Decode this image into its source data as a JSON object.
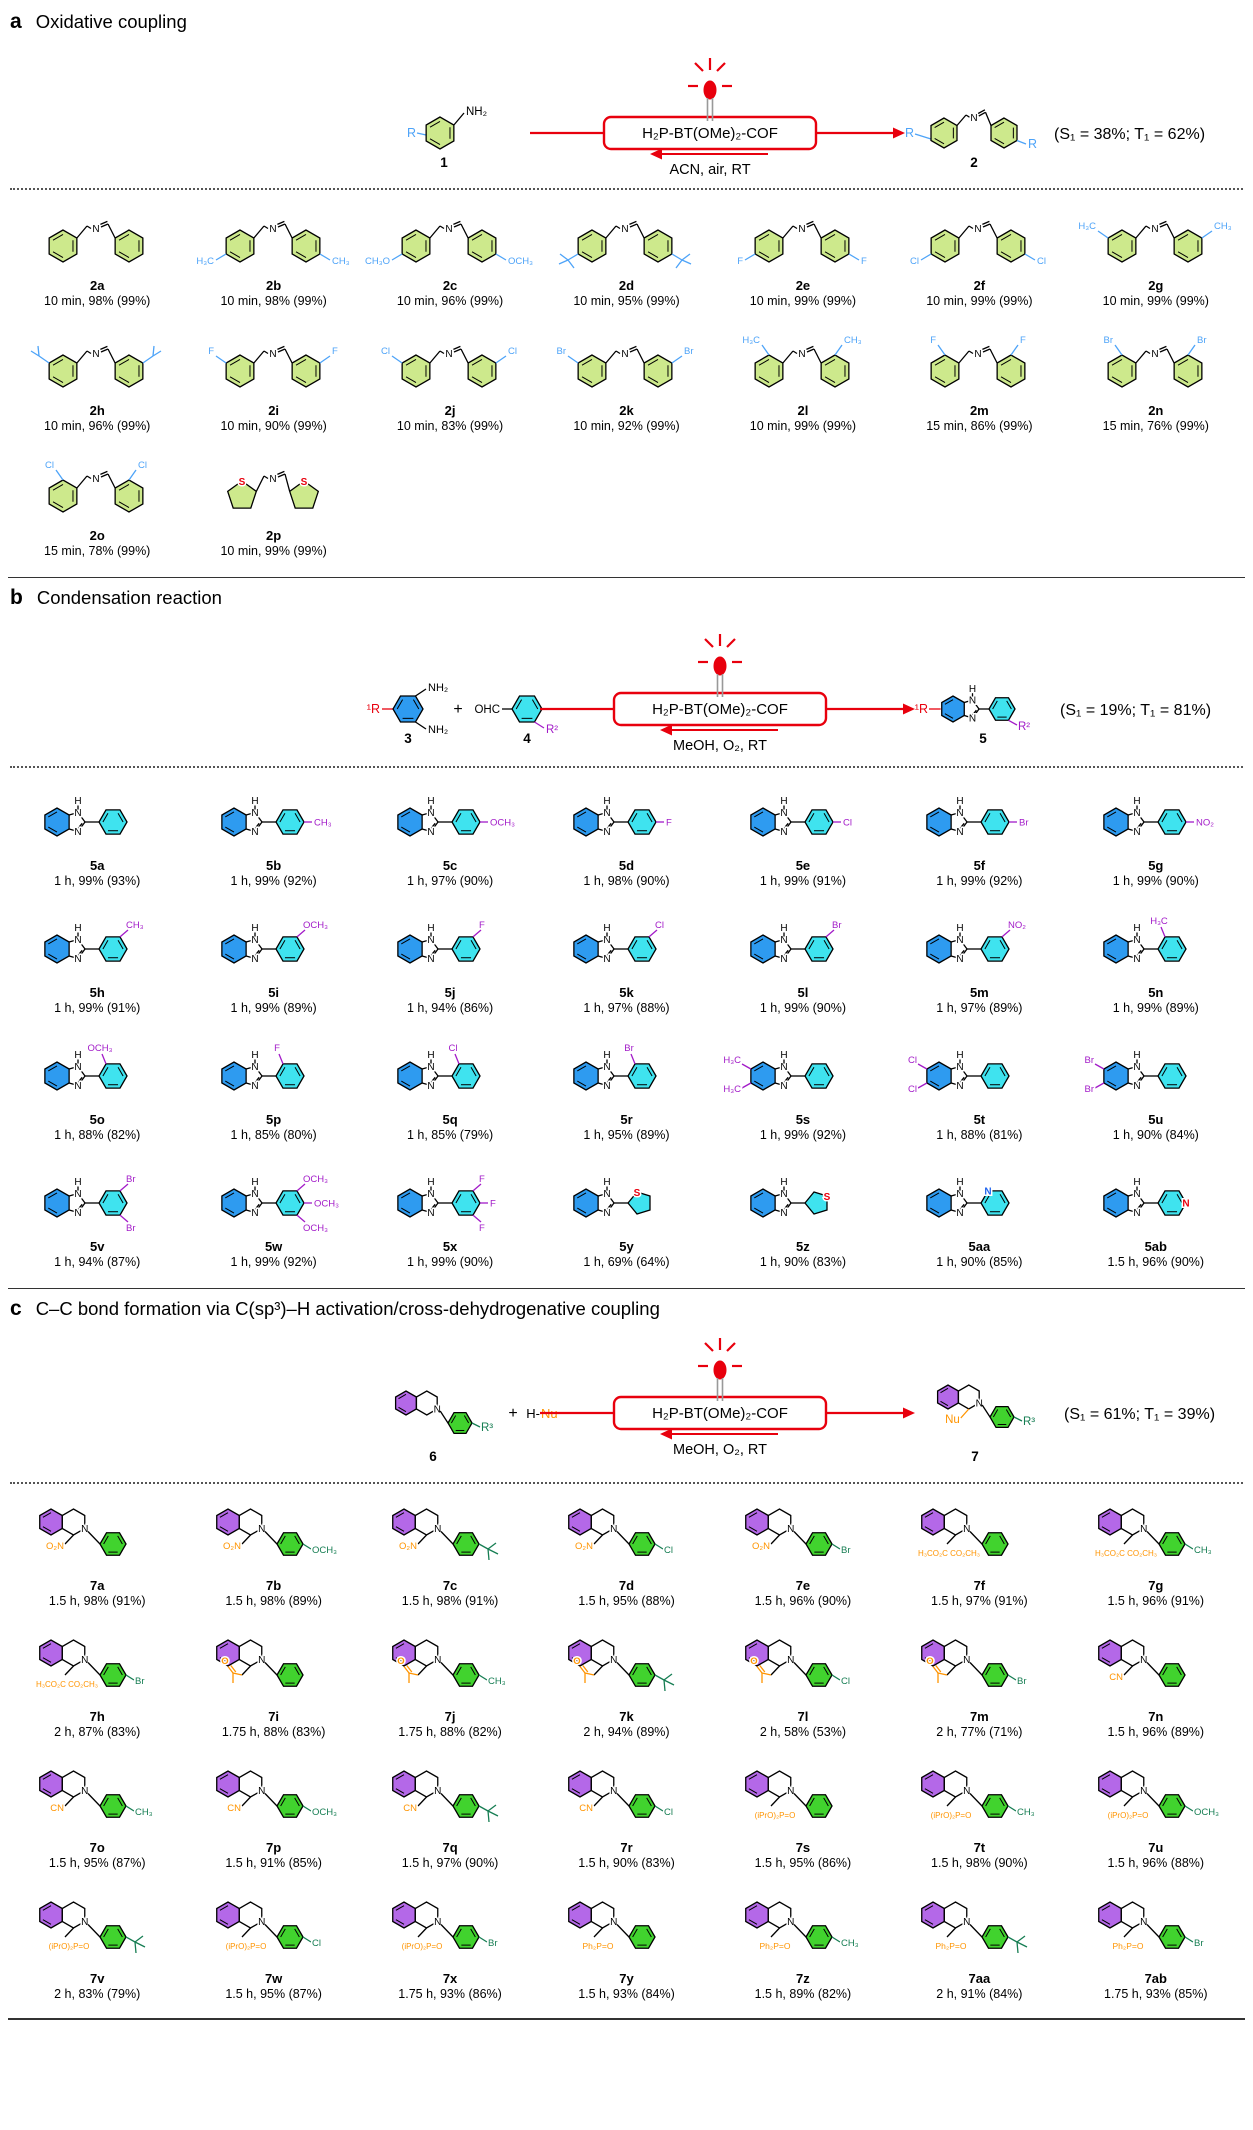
{
  "colors": {
    "accent_red": "#e8000d",
    "ring_green": "#cde98c",
    "sub_blue": "#4da3f8",
    "ring_blue": "#2e9bf0",
    "ring_cyan": "#3fe3ef",
    "sub_purple": "#a21bc8",
    "ring_purple": "#b468e8",
    "ring_bright_green": "#41d32e",
    "sub_dark_green": "#157d52",
    "nu_orange": "#ff9400",
    "s_red": "#e8000d",
    "n_blue": "#2266ee",
    "lead_gray": "#999999"
  },
  "sections": [
    {
      "id": "a",
      "letter": "a",
      "title": "Oxidative coupling",
      "scheme": {
        "r_left": "R",
        "amine": "NH₂",
        "reactant_no": "1",
        "catalyst": "H₂P-BT(OMe)₂-COF",
        "conditions": "ACN, air, RT",
        "product_no": "2",
        "r_right": "R",
        "states": "(S₁ = 38%; T₁ = 62%)"
      },
      "compounds": [
        {
          "label": "2a",
          "sub": "",
          "pos": "none",
          "yield": "10 min, 98% (99%)"
        },
        {
          "label": "2b",
          "sub": "CH₃",
          "pos": "para",
          "yield": "10 min, 98% (99%)"
        },
        {
          "label": "2c",
          "sub": "OCH₃",
          "pos": "para",
          "yield": "10 min, 96% (99%)"
        },
        {
          "label": "2d",
          "sub": "tBu",
          "pos": "para",
          "yield": "10 min, 95% (99%)"
        },
        {
          "label": "2e",
          "sub": "F",
          "pos": "para",
          "yield": "10 min, 99% (99%)"
        },
        {
          "label": "2f",
          "sub": "Cl",
          "pos": "para",
          "yield": "10 min, 99% (99%)"
        },
        {
          "label": "2g",
          "sub": "CH₃",
          "pos": "meta",
          "yield": "10 min, 99% (99%)"
        },
        {
          "label": "2h",
          "sub": "iPr",
          "pos": "meta",
          "yield": "10 min, 96% (99%)"
        },
        {
          "label": "2i",
          "sub": "F",
          "pos": "meta",
          "yield": "10 min, 90% (99%)"
        },
        {
          "label": "2j",
          "sub": "Cl",
          "pos": "meta",
          "yield": "10 min, 83% (99%)"
        },
        {
          "label": "2k",
          "sub": "Br",
          "pos": "meta",
          "yield": "10 min, 92% (99%)"
        },
        {
          "label": "2l",
          "sub": "CH₃",
          "pos": "ortho",
          "yield": "10 min, 99% (99%)"
        },
        {
          "label": "2m",
          "sub": "F",
          "pos": "ortho",
          "yield": "15 min, 86% (99%)"
        },
        {
          "label": "2n",
          "sub": "Br",
          "pos": "ortho",
          "yield": "15 min, 76% (99%)"
        },
        {
          "label": "2o",
          "sub": "Cl",
          "pos": "ortho",
          "yield": "15 min, 78% (99%)"
        },
        {
          "label": "2p",
          "sub": "S",
          "pos": "thiophene",
          "yield": "10 min, 99% (99%)"
        }
      ]
    },
    {
      "id": "b",
      "letter": "b",
      "title": "Condensation reaction",
      "scheme": {
        "r1": "¹R",
        "nh2_top": "NH₂",
        "nh2_bot": "NH₂",
        "plus": "+",
        "cho": "OHC",
        "r2": "R²",
        "reactant_no": "3",
        "aldehyde_no": "4",
        "catalyst": "H₂P-BT(OMe)₂-COF",
        "conditions": "MeOH, O₂, RT",
        "product_no": "5",
        "nh": "H",
        "states": "(S₁ = 19%; T₁ = 81%)"
      },
      "compounds": [
        {
          "label": "5a",
          "aryl": "phenyl",
          "subs": [],
          "yield": "1 h, 99% (93%)"
        },
        {
          "label": "5b",
          "aryl": "phenyl",
          "subs": [
            {
              "t": "CH₃",
              "pos": "para"
            }
          ],
          "yield": "1 h, 99% (92%)"
        },
        {
          "label": "5c",
          "aryl": "phenyl",
          "subs": [
            {
              "t": "OCH₃",
              "pos": "para"
            }
          ],
          "yield": "1 h, 97% (90%)"
        },
        {
          "label": "5d",
          "aryl": "phenyl",
          "subs": [
            {
              "t": "F",
              "pos": "para"
            }
          ],
          "yield": "1 h, 98% (90%)"
        },
        {
          "label": "5e",
          "aryl": "phenyl",
          "subs": [
            {
              "t": "Cl",
              "pos": "para"
            }
          ],
          "yield": "1 h, 99% (91%)"
        },
        {
          "label": "5f",
          "aryl": "phenyl",
          "subs": [
            {
              "t": "Br",
              "pos": "para"
            }
          ],
          "yield": "1 h, 99% (92%)"
        },
        {
          "label": "5g",
          "aryl": "phenyl",
          "subs": [
            {
              "t": "NO₂",
              "pos": "para"
            }
          ],
          "yield": "1 h, 99% (90%)"
        },
        {
          "label": "5h",
          "aryl": "phenyl",
          "subs": [
            {
              "t": "CH₃",
              "pos": "meta"
            }
          ],
          "yield": "1 h, 99% (91%)"
        },
        {
          "label": "5i",
          "aryl": "phenyl",
          "subs": [
            {
              "t": "OCH₃",
              "pos": "meta"
            }
          ],
          "yield": "1 h, 99% (89%)"
        },
        {
          "label": "5j",
          "aryl": "phenyl",
          "subs": [
            {
              "t": "F",
              "pos": "meta"
            }
          ],
          "yield": "1 h, 94% (86%)"
        },
        {
          "label": "5k",
          "aryl": "phenyl",
          "subs": [
            {
              "t": "Cl",
              "pos": "meta"
            }
          ],
          "yield": "1 h, 97% (88%)"
        },
        {
          "label": "5l",
          "aryl": "phenyl",
          "subs": [
            {
              "t": "Br",
              "pos": "meta"
            }
          ],
          "yield": "1 h, 99% (90%)"
        },
        {
          "label": "5m",
          "aryl": "phenyl",
          "subs": [
            {
              "t": "NO₂",
              "pos": "meta"
            }
          ],
          "yield": "1 h, 97% (89%)"
        },
        {
          "label": "5n",
          "aryl": "phenyl",
          "subs": [
            {
              "t": "H₃C",
              "pos": "ortho"
            }
          ],
          "yield": "1 h, 99% (89%)"
        },
        {
          "label": "5o",
          "aryl": "phenyl",
          "subs": [
            {
              "t": "OCH₃",
              "pos": "ortho"
            }
          ],
          "yield": "1 h, 88% (82%)"
        },
        {
          "label": "5p",
          "aryl": "phenyl",
          "subs": [
            {
              "t": "F",
              "pos": "ortho"
            }
          ],
          "yield": "1 h, 85% (80%)"
        },
        {
          "label": "5q",
          "aryl": "phenyl",
          "subs": [
            {
              "t": "Cl",
              "pos": "ortho"
            }
          ],
          "yield": "1 h, 85% (79%)"
        },
        {
          "label": "5r",
          "aryl": "phenyl",
          "subs": [
            {
              "t": "Br",
              "pos": "ortho"
            }
          ],
          "yield": "1 h, 95% (89%)"
        },
        {
          "label": "5s",
          "aryl": "phenyl",
          "subs": [],
          "benzo_subs": [
            "H₃C",
            "H₃C"
          ],
          "yield": "1 h, 99% (92%)"
        },
        {
          "label": "5t",
          "aryl": "phenyl",
          "subs": [],
          "benzo_subs": [
            "Cl",
            "Cl"
          ],
          "yield": "1 h, 88% (81%)"
        },
        {
          "label": "5u",
          "aryl": "phenyl",
          "subs": [],
          "benzo_subs": [
            "Br",
            "Br"
          ],
          "yield": "1 h, 90% (84%)"
        },
        {
          "label": "5v",
          "aryl": "phenyl",
          "subs": [
            {
              "t": "Br",
              "pos": "meta"
            },
            {
              "t": "Br",
              "pos": "metad"
            }
          ],
          "yield": "1 h, 94% (87%)"
        },
        {
          "label": "5w",
          "aryl": "phenyl",
          "subs": [
            {
              "t": "OCH₃",
              "pos": "meta"
            },
            {
              "t": "OCH₃",
              "pos": "para"
            },
            {
              "t": "OCH₃",
              "pos": "metad"
            }
          ],
          "yield": "1 h, 99% (92%)"
        },
        {
          "label": "5x",
          "aryl": "phenyl",
          "subs": [
            {
              "t": "F",
              "pos": "meta"
            },
            {
              "t": "F",
              "pos": "para"
            },
            {
              "t": "F",
              "pos": "metad"
            }
          ],
          "yield": "1 h, 99% (90%)"
        },
        {
          "label": "5y",
          "aryl": "thiophene2",
          "subs": [],
          "yield": "1 h, 69% (64%)"
        },
        {
          "label": "5z",
          "aryl": "thiophene3",
          "subs": [],
          "yield": "1 h, 90% (83%)"
        },
        {
          "label": "5aa",
          "aryl": "pyridine2",
          "subs": [],
          "yield": "1 h, 90% (85%)"
        },
        {
          "label": "5ab",
          "aryl": "pyridine4",
          "subs": [],
          "yield": "1.5 h, 96% (90%)"
        }
      ]
    },
    {
      "id": "c",
      "letter": "c",
      "title": "C–C bond formation via C(sp³)–H activation/cross-dehydrogenative coupling",
      "scheme": {
        "r3": "R³",
        "plus": "+",
        "h_nu_h": "H-",
        "h_nu_nu": "Nu",
        "reactant_no": "6",
        "catalyst": "H₂P-BT(OMe)₂-COF",
        "conditions": "MeOH, O₂, RT",
        "product_no": "7",
        "nu_label": "Nu",
        "states": "(S₁ = 61%; T₁ = 39%)"
      },
      "nu_display": {
        "nitro": "O₂N",
        "cn": "CN",
        "malonate": "H₃CO₂C  CO₂CH₃",
        "acetonyl": "O",
        "phosphonate": "(iPrO)₂P=O",
        "pox": "Ph₂P=O"
      },
      "compounds": [
        {
          "label": "7a",
          "nu": "nitro",
          "sub": "",
          "yield": "1.5 h, 98% (91%)"
        },
        {
          "label": "7b",
          "nu": "nitro",
          "sub": "OCH₃",
          "yield": "1.5 h, 98% (89%)"
        },
        {
          "label": "7c",
          "nu": "nitro",
          "sub": "tBu",
          "yield": "1.5 h, 98% (91%)"
        },
        {
          "label": "7d",
          "nu": "nitro",
          "sub": "Cl",
          "yield": "1.5 h, 95% (88%)"
        },
        {
          "label": "7e",
          "nu": "nitro",
          "sub": "Br",
          "yield": "1.5 h, 96% (90%)"
        },
        {
          "label": "7f",
          "nu": "malonate",
          "sub": "",
          "yield": "1.5 h, 97% (91%)"
        },
        {
          "label": "7g",
          "nu": "malonate",
          "sub": "CH₃",
          "yield": "1.5 h, 96% (91%)"
        },
        {
          "label": "7h",
          "nu": "malonate",
          "sub": "Br",
          "yield": "2 h, 87% (83%)"
        },
        {
          "label": "7i",
          "nu": "acetonyl",
          "sub": "",
          "yield": "1.75 h, 88% (83%)"
        },
        {
          "label": "7j",
          "nu": "acetonyl",
          "sub": "CH₃",
          "yield": "1.75 h, 88% (82%)"
        },
        {
          "label": "7k",
          "nu": "acetonyl",
          "sub": "tBu",
          "yield": "2 h, 94% (89%)"
        },
        {
          "label": "7l",
          "nu": "acetonyl",
          "sub": "Cl",
          "yield": "2 h, 58% (53%)"
        },
        {
          "label": "7m",
          "nu": "acetonyl",
          "sub": "Br",
          "yield": "2 h, 77% (71%)"
        },
        {
          "label": "7n",
          "nu": "cn",
          "sub": "",
          "yield": "1.5 h, 96% (89%)"
        },
        {
          "label": "7o",
          "nu": "cn",
          "sub": "CH₃",
          "yield": "1.5 h, 95% (87%)"
        },
        {
          "label": "7p",
          "nu": "cn",
          "sub": "OCH₃",
          "yield": "1.5 h, 91% (85%)"
        },
        {
          "label": "7q",
          "nu": "cn",
          "sub": "tBu",
          "yield": "1.5 h, 97% (90%)"
        },
        {
          "label": "7r",
          "nu": "cn",
          "sub": "Cl",
          "yield": "1.5 h, 90% (83%)"
        },
        {
          "label": "7s",
          "nu": "phosphonate",
          "sub": "",
          "yield": "1.5 h, 95% (86%)"
        },
        {
          "label": "7t",
          "nu": "phosphonate",
          "sub": "CH₃",
          "yield": "1.5 h, 98% (90%)"
        },
        {
          "label": "7u",
          "nu": "phosphonate",
          "sub": "OCH₃",
          "yield": "1.5 h, 96% (88%)"
        },
        {
          "label": "7v",
          "nu": "phosphonate",
          "sub": "tBu",
          "yield": "2 h, 83% (79%)"
        },
        {
          "label": "7w",
          "nu": "phosphonate",
          "sub": "Cl",
          "yield": "1.5 h, 95% (87%)"
        },
        {
          "label": "7x",
          "nu": "phosphonate",
          "sub": "Br",
          "yield": "1.75 h, 93% (86%)"
        },
        {
          "label": "7y",
          "nu": "pox",
          "sub": "",
          "yield": "1.5 h, 93% (84%)"
        },
        {
          "label": "7z",
          "nu": "pox",
          "sub": "CH₃",
          "yield": "1.5 h, 89% (82%)"
        },
        {
          "label": "7aa",
          "nu": "pox",
          "sub": "tBu",
          "yield": "2 h, 91% (84%)"
        },
        {
          "label": "7ab",
          "nu": "pox",
          "sub": "Br",
          "yield": "1.75 h, 93% (85%)"
        }
      ]
    }
  ]
}
